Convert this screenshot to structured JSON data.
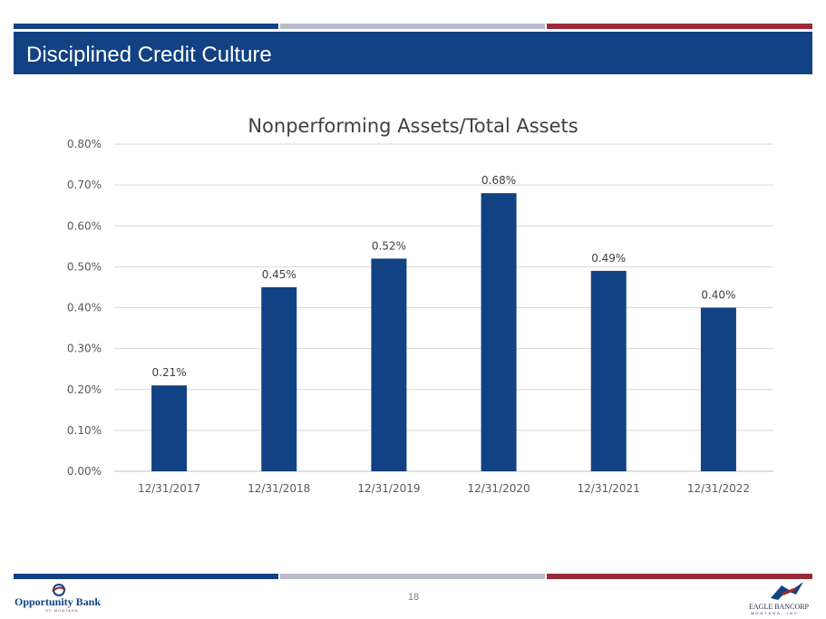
{
  "slide": {
    "title": "Disciplined Credit Culture",
    "page_number": "18"
  },
  "colors": {
    "navy": "#124284",
    "gray": "#b8bccb",
    "maroon": "#9a2a3a",
    "bar": "#124284"
  },
  "logos": {
    "left": {
      "name": "Opportunity Bank",
      "tagline": "OF MONTANA"
    },
    "right": {
      "name": "EAGLE BANCORP",
      "tagline": "MONTANA, INC"
    }
  },
  "chart_data": {
    "type": "bar",
    "title": "Nonperforming Assets/Total Assets",
    "xlabel": "",
    "ylabel": "",
    "categories": [
      "12/31/2017",
      "12/31/2018",
      "12/31/2019",
      "12/31/2020",
      "12/31/2021",
      "12/31/2022"
    ],
    "values": [
      0.21,
      0.45,
      0.52,
      0.68,
      0.49,
      0.4
    ],
    "data_labels": [
      "0.21%",
      "0.45%",
      "0.52%",
      "0.68%",
      "0.49%",
      "0.40%"
    ],
    "ylim": [
      0,
      0.8
    ],
    "yticks": [
      0,
      0.1,
      0.2,
      0.3,
      0.4,
      0.5,
      0.6,
      0.7,
      0.8
    ],
    "ytick_labels": [
      "0.00%",
      "0.10%",
      "0.20%",
      "0.30%",
      "0.40%",
      "0.50%",
      "0.60%",
      "0.70%",
      "0.80%"
    ],
    "grid": true,
    "legend": "none"
  }
}
